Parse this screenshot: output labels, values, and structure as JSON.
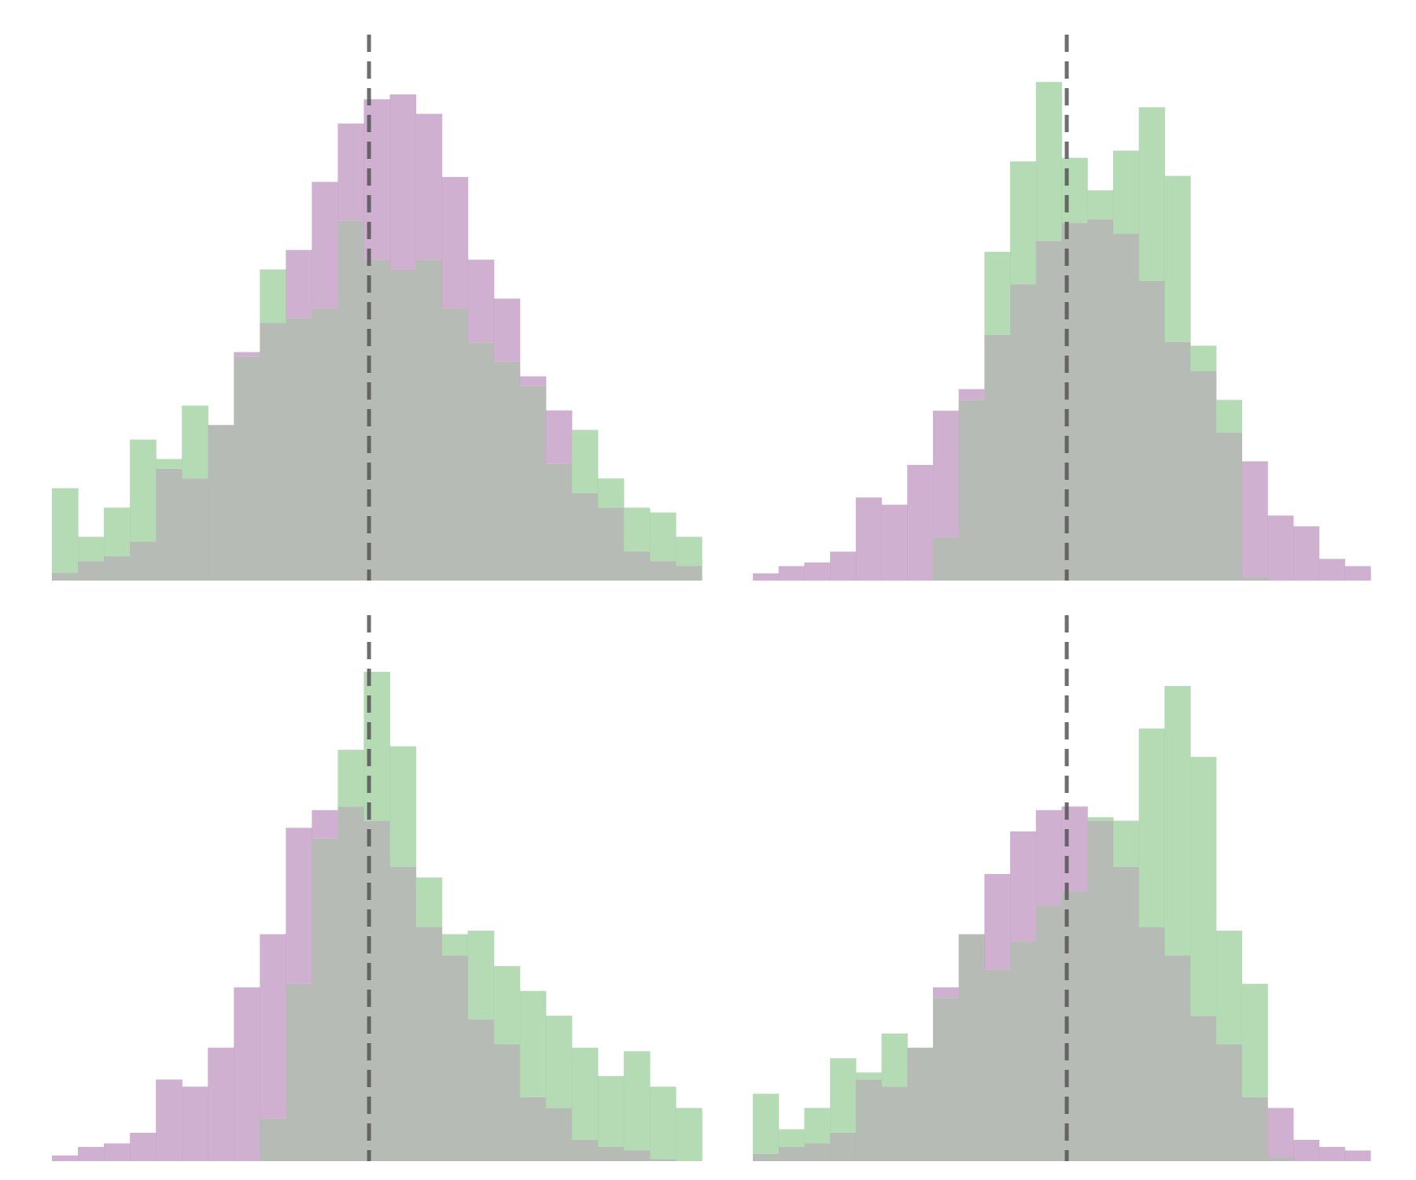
{
  "colors": {
    "series_a": "#c8a2c8",
    "series_b": "#a8d5a8",
    "overlap": "#b7bbb5",
    "median_line": "#555555"
  },
  "chart_data": [
    {
      "type": "bar",
      "panel": "top-left",
      "xlim": [
        0,
        25
      ],
      "ylim": [
        0,
        50
      ],
      "median_x": 12.2,
      "series": [
        {
          "values": [
            0.8,
            2.0,
            2.5,
            4.0,
            11.5,
            10.5,
            16.0,
            23.5,
            26.5,
            34.0,
            41.0,
            47.0,
            49.5,
            50.0,
            48.0,
            41.5,
            33.0,
            29.0,
            21.0,
            17.5,
            9.0,
            7.5,
            3.0,
            2.0,
            1.5,
            0.3
          ]
        },
        {
          "values": [
            9.5,
            4.5,
            7.5,
            14.5,
            12.5,
            18.0,
            16.0,
            23.0,
            32.0,
            27.0,
            28.0,
            37.0,
            33.0,
            32.0,
            33.0,
            28.0,
            24.5,
            22.5,
            20.0,
            12.0,
            15.5,
            10.5,
            7.5,
            7.0,
            4.5,
            2.0
          ]
        }
      ]
    },
    {
      "type": "bar",
      "panel": "top-right",
      "xlim": [
        0,
        24
      ],
      "ylim": [
        0,
        70
      ],
      "median_x": 12.2,
      "series": [
        {
          "values": [
            1.0,
            2.0,
            2.5,
            4.0,
            11.5,
            10.5,
            16.0,
            23.5,
            26.5,
            34.0,
            41.0,
            47.0,
            49.5,
            50.0,
            48.0,
            41.5,
            33.0,
            29.0,
            20.5,
            16.5,
            9.0,
            7.5,
            3.0,
            2.0,
            1.5
          ]
        },
        {
          "values": [
            0,
            0,
            0,
            0,
            0,
            0,
            0,
            6.0,
            25.0,
            45.5,
            58.0,
            69.0,
            58.5,
            54.0,
            59.5,
            65.5,
            56.0,
            32.5,
            25.0,
            0.5,
            0,
            0,
            0,
            0,
            0
          ]
        }
      ]
    },
    {
      "type": "bar",
      "panel": "bottom-left",
      "xlim": [
        0,
        25
      ],
      "ylim": [
        0,
        70
      ],
      "median_x": 12.2,
      "series": [
        {
          "values": [
            0.8,
            2.0,
            2.5,
            4.0,
            11.5,
            10.5,
            16.0,
            24.5,
            32.0,
            47.0,
            49.5,
            50.0,
            48.0,
            41.5,
            33.0,
            29.0,
            20.0,
            16.5,
            9.0,
            7.5,
            3.0,
            2.0,
            1.5,
            0.3,
            0,
            0
          ]
        },
        {
          "values": [
            0,
            0,
            0,
            0,
            0,
            0,
            0,
            0,
            6.0,
            25.0,
            45.5,
            58.0,
            69.0,
            58.5,
            40.0,
            32.0,
            32.5,
            27.5,
            24.0,
            20.5,
            16.0,
            12.0,
            15.5,
            10.5,
            7.5,
            7.0,
            4.5,
            2.0
          ]
        }
      ]
    },
    {
      "type": "bar",
      "panel": "bottom-right",
      "xlim": [
        0,
        24
      ],
      "ylim": [
        0,
        70
      ],
      "median_x": 12.2,
      "series": [
        {
          "values": [
            1.0,
            2.0,
            2.5,
            4.0,
            11.5,
            10.5,
            16.0,
            24.5,
            32.0,
            40.5,
            46.5,
            49.5,
            50.0,
            48.0,
            41.5,
            33.0,
            29.0,
            20.5,
            16.5,
            9.0,
            7.5,
            3.0,
            2.0,
            1.5
          ]
        },
        {
          "values": [
            9.5,
            4.5,
            7.5,
            14.5,
            12.5,
            18.0,
            16.0,
            23.0,
            32.0,
            27.0,
            31.0,
            36.0,
            38.0,
            48.5,
            48.0,
            61.0,
            67.0,
            57.0,
            32.5,
            25.0,
            0.5,
            0,
            0,
            0
          ]
        }
      ]
    }
  ]
}
